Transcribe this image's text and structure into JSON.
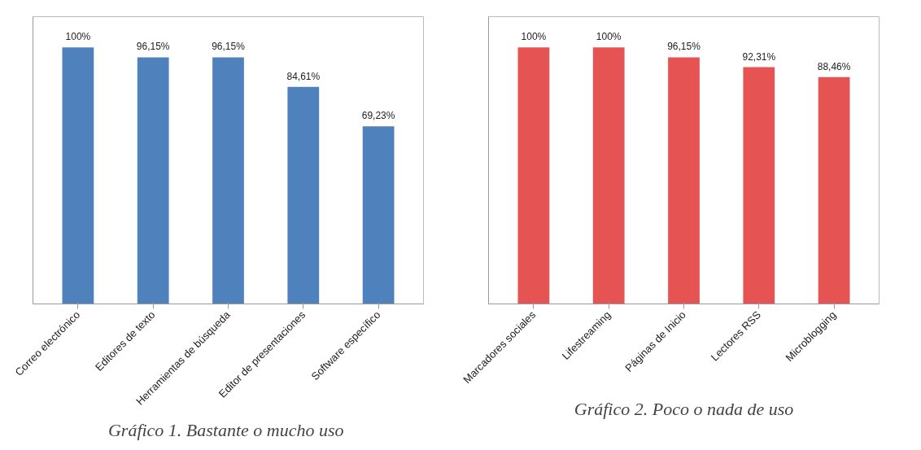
{
  "chart_data": [
    {
      "type": "bar",
      "title": "Gráfico 1. Bastante o  mucho uso",
      "categories": [
        "Correo electrónico",
        "Editores de texto",
        "Herramientas de búsqueda",
        "Editor de presentaciones",
        "Software específico"
      ],
      "values": [
        100,
        96.15,
        96.15,
        84.61,
        69.23
      ],
      "value_labels": [
        "100%",
        "96,15%",
        "96,15%",
        "84,61%",
        "69,23%"
      ],
      "color": "#4f81bd",
      "grid": false,
      "tick_labels": "x"
    },
    {
      "type": "bar",
      "title": "Gráfico 2. Poco o nada de uso",
      "categories": [
        "Marcadores sociales",
        "Lifestreaming",
        "Páginas de Inicio",
        "Lectores RSS",
        "Microblogging"
      ],
      "values": [
        100,
        100,
        96.15,
        92.31,
        88.46
      ],
      "value_labels": [
        "100%",
        "100%",
        "96,15%",
        "92,31%",
        "88,46%"
      ],
      "color": "#e55353",
      "grid": false,
      "tick_labels": "x"
    }
  ]
}
